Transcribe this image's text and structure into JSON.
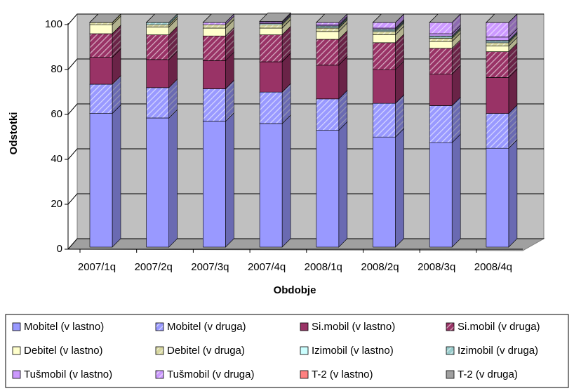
{
  "chart_data": {
    "type": "bar3d_stacked",
    "x_label": "Obdobje",
    "y_label": "Odstotki",
    "categories": [
      "2007/1q",
      "2007/2q",
      "2007/3q",
      "2007/4q",
      "2008/1q",
      "2008/2q",
      "2008/3q",
      "2008/4q"
    ],
    "ylim": [
      0,
      100
    ],
    "yticks": [
      0,
      20,
      40,
      60,
      80,
      100
    ],
    "grid": true,
    "series": [
      {
        "name": "Mobitel (v lastno)",
        "color": "#9999ff",
        "hatched": false,
        "values": [
          59.5,
          57.5,
          56,
          55,
          52,
          49,
          46.5,
          44
        ]
      },
      {
        "name": "Mobitel (v druga)",
        "color": "#9999ff",
        "hatched": true,
        "values": [
          13,
          13.5,
          14.5,
          14,
          14,
          15,
          16.5,
          15.5
        ]
      },
      {
        "name": "Si.mobil (v lastno)",
        "color": "#993366",
        "hatched": false,
        "values": [
          12,
          12.5,
          12.5,
          13.5,
          15,
          15,
          14,
          16
        ]
      },
      {
        "name": "Si.mobil (v druga)",
        "color": "#993366",
        "hatched": true,
        "values": [
          10.5,
          11,
          11,
          12,
          11.5,
          12,
          11.5,
          11.5
        ]
      },
      {
        "name": "Debitel (v lastno)",
        "color": "#ffffcc",
        "hatched": false,
        "values": [
          4,
          3.5,
          3.5,
          3,
          3.5,
          3.5,
          3,
          2.5
        ]
      },
      {
        "name": "Debitel (v druga)",
        "color": "#d8d8a0",
        "hatched": true,
        "values": [
          1,
          1,
          1.5,
          1.5,
          1.5,
          1.5,
          1.5,
          1.5
        ]
      },
      {
        "name": "Izimobil (v lastno)",
        "color": "#ccffff",
        "hatched": false,
        "values": [
          0,
          0,
          0,
          0.5,
          0.5,
          0.5,
          0.5,
          0.5
        ]
      },
      {
        "name": "Izimobil (v druga)",
        "color": "#99cccc",
        "hatched": true,
        "values": [
          0,
          1,
          0,
          0,
          0.5,
          0.5,
          0.5,
          0.5
        ]
      },
      {
        "name": "Tušmobil (v lastno)",
        "color": "#cc99ff",
        "hatched": false,
        "values": [
          0,
          0,
          0,
          0.5,
          0.5,
          0.5,
          1,
          1.5
        ]
      },
      {
        "name": "Tušmobil (v druga)",
        "color": "#cc99ff",
        "hatched": true,
        "values": [
          0,
          0,
          1,
          0.5,
          1,
          2.5,
          5,
          6.5
        ]
      },
      {
        "name": "T-2 (v lastno)",
        "color": "#ff8080",
        "hatched": false,
        "values": [
          0,
          0,
          0,
          0,
          0,
          0,
          0,
          0
        ]
      },
      {
        "name": "T-2 (v druga)",
        "color": "#a0a0a0",
        "hatched": false,
        "values": [
          0,
          0,
          0,
          0,
          0,
          0,
          0,
          0
        ]
      }
    ]
  }
}
